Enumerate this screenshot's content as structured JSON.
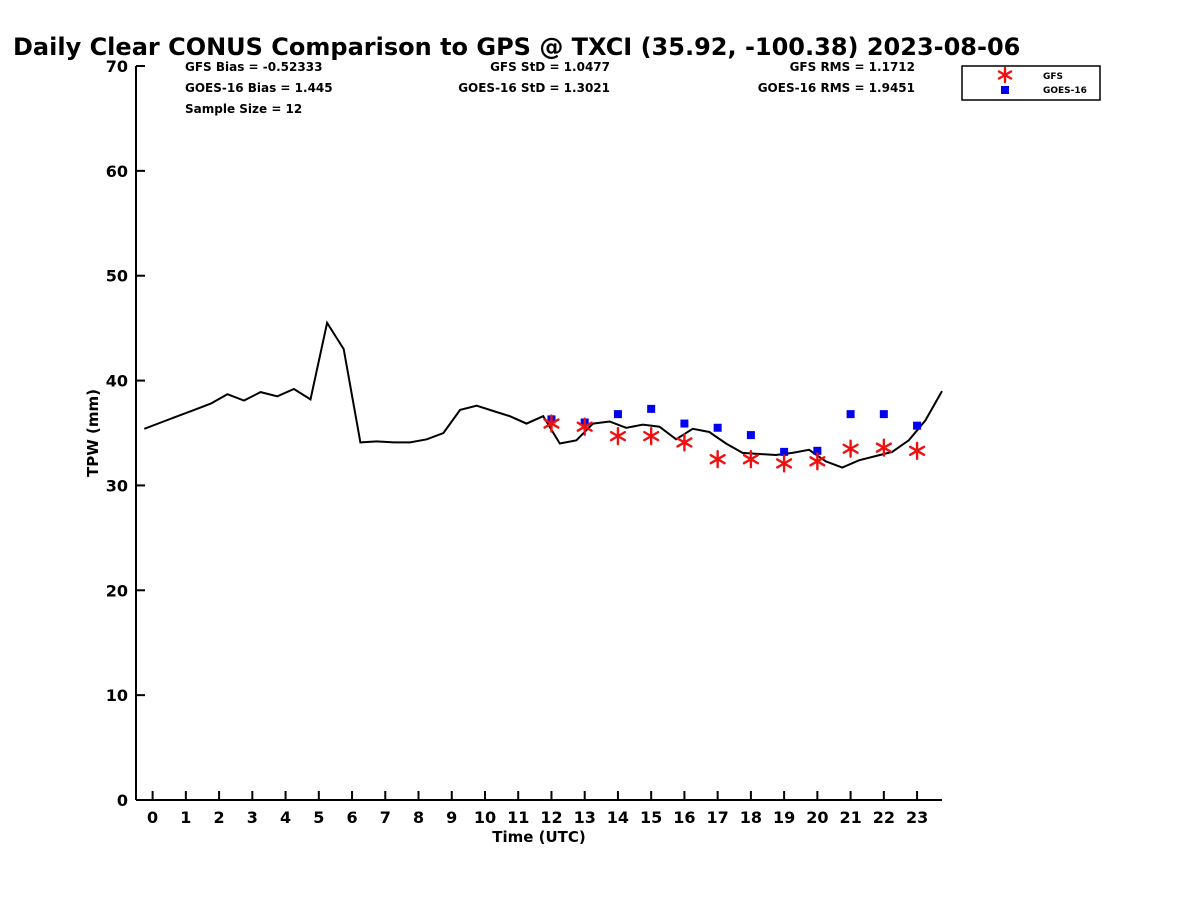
{
  "chart_data": {
    "type": "scatter",
    "title": "Daily Clear CONUS Comparison to GPS @ TXCI (35.92, -100.38) 2023-08-06",
    "xlabel": "Time (UTC)",
    "ylabel": "TPW (mm)",
    "xlim": [
      -0.5,
      23.75
    ],
    "ylim": [
      0,
      70
    ],
    "xticks": [
      "0",
      "1",
      "2",
      "3",
      "4",
      "5",
      "6",
      "7",
      "8",
      "9",
      "10",
      "11",
      "12",
      "13",
      "14",
      "15",
      "16",
      "17",
      "18",
      "19",
      "20",
      "21",
      "22",
      "23"
    ],
    "yticks": [
      "0",
      "10",
      "20",
      "30",
      "40",
      "50",
      "60",
      "70"
    ],
    "grid": false,
    "legend_position": "top-right",
    "stats": {
      "gfs_bias": "GFS Bias = -0.52333",
      "goes_bias": "GOES-16 Bias = 1.445",
      "sample_size": "Sample Size = 12",
      "gfs_std": "GFS StD = 1.0477",
      "goes_std": "GOES-16 StD = 1.3021",
      "gfs_rms": "GFS RMS = 1.1712",
      "goes_rms": "GOES-16 RMS = 1.9451"
    },
    "series": [
      {
        "name": "GFS",
        "marker": "asterisk",
        "color": "#ee1111",
        "x": [
          12,
          13,
          14,
          15,
          16,
          17,
          18,
          19,
          20,
          21,
          22,
          23
        ],
        "y": [
          35.9,
          35.6,
          34.7,
          34.7,
          34.1,
          32.5,
          32.5,
          32.1,
          32.3,
          33.5,
          33.6,
          33.3
        ]
      },
      {
        "name": "GOES-16",
        "marker": "square",
        "color": "#0000ee",
        "x": [
          12,
          13,
          14,
          15,
          16,
          17,
          18,
          19,
          20,
          21,
          22,
          23
        ],
        "y": [
          36.3,
          36.0,
          36.8,
          37.3,
          35.9,
          35.5,
          34.8,
          33.2,
          33.3,
          36.8,
          36.8,
          35.7
        ]
      },
      {
        "name": "GPS",
        "marker": "line",
        "color": "#000000",
        "x": [
          -0.25,
          0.25,
          0.75,
          1.25,
          1.75,
          2.25,
          2.75,
          3.25,
          3.75,
          4.25,
          4.75,
          5.25,
          5.75,
          6.25,
          6.75,
          7.25,
          7.75,
          8.25,
          8.75,
          9.25,
          9.75,
          10.25,
          10.75,
          11.25,
          11.75,
          12.25,
          12.75,
          13.25,
          13.75,
          14.25,
          14.75,
          15.25,
          15.75,
          16.25,
          16.75,
          17.25,
          17.75,
          18.25,
          18.75,
          19.25,
          19.75,
          20.25,
          20.75,
          21.25,
          21.75,
          22.25,
          22.75,
          23.25,
          23.75
        ],
        "y": [
          35.4,
          36.0,
          36.6,
          37.2,
          37.8,
          38.7,
          38.1,
          38.9,
          38.5,
          39.2,
          38.2,
          45.5,
          43.0,
          34.1,
          34.2,
          34.1,
          34.1,
          34.4,
          35.0,
          37.2,
          37.6,
          37.1,
          36.6,
          35.9,
          36.6,
          34.0,
          34.3,
          35.9,
          36.1,
          35.5,
          35.8,
          35.6,
          34.4,
          35.4,
          35.1,
          34.0,
          33.1,
          33.0,
          32.9,
          33.1,
          33.4,
          32.3,
          31.7,
          32.4,
          32.8,
          33.2,
          34.3,
          36.2,
          39.0
        ]
      }
    ]
  }
}
